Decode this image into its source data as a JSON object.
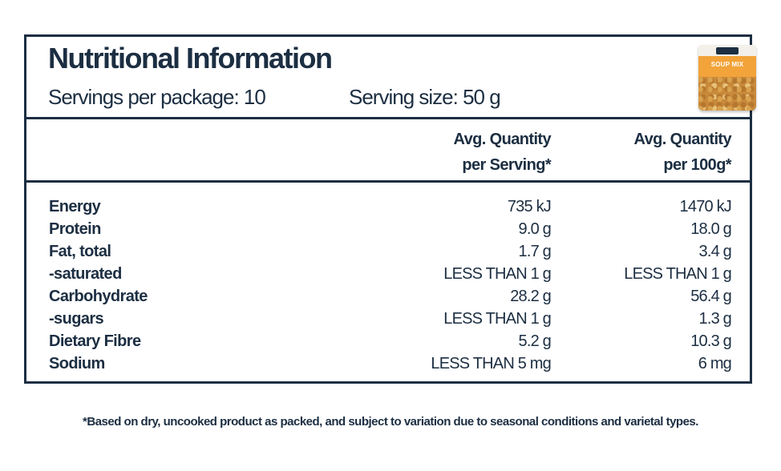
{
  "header": {
    "title": "Nutritional Information",
    "servings_per_package": "Servings per package: 10",
    "serving_size": "Serving size: 50 g"
  },
  "product_image": {
    "label": "SOUP MIX",
    "accent": "#f2a33a"
  },
  "table": {
    "columns": [
      {
        "line1": "Avg. Quantity",
        "line2": "per Serving*"
      },
      {
        "line1": "Avg. Quantity",
        "line2": "per 100g*"
      }
    ],
    "rows": [
      {
        "name": "Energy",
        "per_serving": "735 kJ",
        "per_100g": "1470 kJ"
      },
      {
        "name": "Protein",
        "per_serving": "9.0 g",
        "per_100g": "18.0 g"
      },
      {
        "name": "Fat, total",
        "per_serving": "1.7 g",
        "per_100g": "3.4 g"
      },
      {
        "name": "-saturated",
        "per_serving": "LESS THAN 1 g",
        "per_100g": "LESS THAN 1 g"
      },
      {
        "name": "Carbohydrate",
        "per_serving": "28.2 g",
        "per_100g": "56.4 g"
      },
      {
        "name": "-sugars",
        "per_serving": "LESS THAN 1 g",
        "per_100g": "1.3 g"
      },
      {
        "name": "Dietary Fibre",
        "per_serving": "5.2 g",
        "per_100g": "10.3 g"
      },
      {
        "name": "Sodium",
        "per_serving": "LESS THAN 5 mg",
        "per_100g": "6 mg"
      }
    ]
  },
  "footnote": "*Based on dry, uncooked product as packed, and subject to variation due to seasonal conditions and varietal types.",
  "colors": {
    "ink": "#1c2e42",
    "background": "#ffffff"
  }
}
